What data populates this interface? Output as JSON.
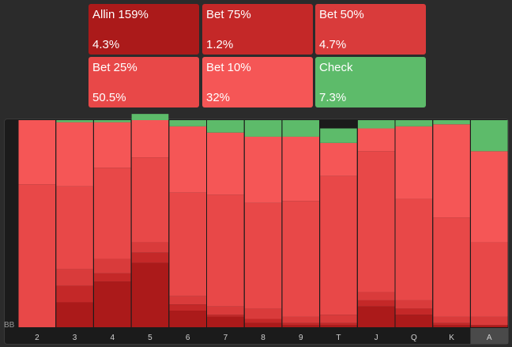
{
  "actions": [
    {
      "label": "Allin 159%",
      "pct": "4.3%",
      "color": "#ab1a1a"
    },
    {
      "label": "Bet 75%",
      "pct": "1.2%",
      "color": "#c42828"
    },
    {
      "label": "Bet 50%",
      "pct": "4.7%",
      "color": "#d93b3b"
    },
    {
      "label": "Bet 25%",
      "pct": "50.5%",
      "color": "#e84848"
    },
    {
      "label": "Bet 10%",
      "pct": "32%",
      "color": "#f55656"
    },
    {
      "label": "Check",
      "pct": "7.3%",
      "color": "#5dbb6a"
    }
  ],
  "axis_unit": "BB",
  "chart_data": {
    "type": "bar",
    "stacked": true,
    "categories": [
      "2",
      "3",
      "4",
      "5",
      "6",
      "7",
      "8",
      "9",
      "T",
      "J",
      "Q",
      "K",
      "A"
    ],
    "selected_category": "A",
    "series": [
      {
        "name": "Allin 159%",
        "color": "#ab1a1a",
        "values": [
          0,
          12,
          22,
          31,
          8,
          5,
          2,
          1,
          1,
          10,
          6,
          1,
          1
        ]
      },
      {
        "name": "Bet 75%",
        "color": "#c42828",
        "values": [
          0,
          8,
          4,
          5,
          3,
          1,
          2,
          1,
          1,
          3,
          3,
          1,
          0
        ]
      },
      {
        "name": "Bet 50%",
        "color": "#d93b3b",
        "values": [
          0,
          8,
          7,
          5,
          4,
          4,
          5,
          3,
          4,
          4,
          4,
          3,
          4
        ]
      },
      {
        "name": "Bet 25%",
        "color": "#e84848",
        "values": [
          69,
          40,
          44,
          41,
          50,
          54,
          51,
          56,
          67,
          68,
          49,
          48,
          36
        ]
      },
      {
        "name": "Bet 10%",
        "color": "#f55656",
        "values": [
          31,
          31,
          22,
          18,
          32,
          30,
          32,
          31,
          16,
          11,
          35,
          45,
          44
        ]
      },
      {
        "name": "Check",
        "color": "#5dbb6a",
        "values": [
          0,
          1,
          1,
          3,
          3,
          6,
          8,
          8,
          7,
          4,
          3,
          2,
          15
        ]
      }
    ],
    "ylim": [
      0,
      100
    ]
  }
}
